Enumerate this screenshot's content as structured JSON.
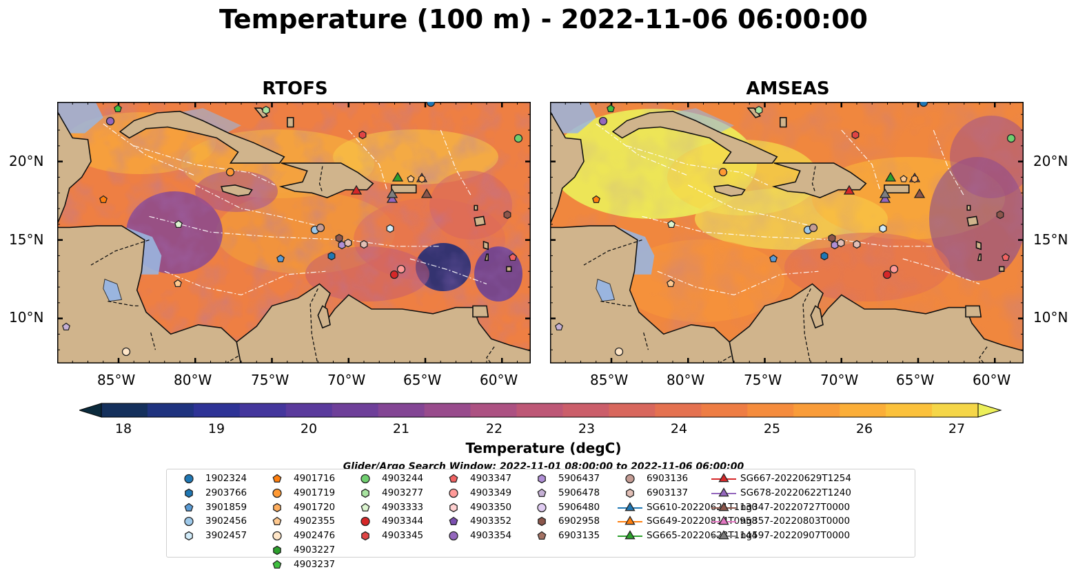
{
  "title": "Temperature (100 m) - 2022-11-06 06:00:00",
  "panels": [
    {
      "title": "RTOFS",
      "scheme": "rtofs"
    },
    {
      "title": "AMSEAS",
      "scheme": "amseas"
    }
  ],
  "axes": {
    "lon_ticks": [
      "85°W",
      "80°W",
      "75°W",
      "70°W",
      "65°W",
      "60°W"
    ],
    "lat_ticks": [
      "20°N",
      "15°N",
      "10°N"
    ]
  },
  "colorbar": {
    "label": "Temperature (degC)",
    "ticks": [
      "18",
      "19",
      "20",
      "21",
      "22",
      "23",
      "24",
      "25",
      "26",
      "27"
    ],
    "colors": [
      "#0b2a3c",
      "#14305c",
      "#1f337f",
      "#2e3396",
      "#44369c",
      "#5a3a9c",
      "#6e3f99",
      "#834594",
      "#984b8c",
      "#ac5182",
      "#bd5776",
      "#cb5e6a",
      "#d8675d",
      "#e47150",
      "#ee7d44",
      "#f58c3d",
      "#f99c39",
      "#fbae38",
      "#fbc13b",
      "#f5d648",
      "#ecef5a"
    ]
  },
  "search_window": "Glider/Argo Search Window: 2022-11-01 08:00:00 to 2022-11-06 06:00:00",
  "legend": [
    {
      "label": "1902324",
      "color": "#1f77b4",
      "shape": "circle"
    },
    {
      "label": "2903766",
      "color": "#1f77b4",
      "shape": "hexagon"
    },
    {
      "label": "3901859",
      "color": "#5a9bd5",
      "shape": "pentagon"
    },
    {
      "label": "3902456",
      "color": "#9ec9ea",
      "shape": "circle"
    },
    {
      "label": "3902457",
      "color": "#d2ecfa",
      "shape": "hexagon"
    },
    {
      "label": "4901716",
      "color": "#ff7f0e",
      "shape": "pentagon"
    },
    {
      "label": "4901719",
      "color": "#ff9933",
      "shape": "circle"
    },
    {
      "label": "4901720",
      "color": "#ffae5e",
      "shape": "hexagon"
    },
    {
      "label": "4902355",
      "color": "#ffc98f",
      "shape": "pentagon"
    },
    {
      "label": "4902476",
      "color": "#ffe6c8",
      "shape": "circle"
    },
    {
      "label": "4903227",
      "color": "#2ca02c",
      "shape": "hexagon"
    },
    {
      "label": "4903237",
      "color": "#3fbf3f",
      "shape": "pentagon"
    },
    {
      "label": "4903244",
      "color": "#6fcf6f",
      "shape": "circle"
    },
    {
      "label": "4903277",
      "color": "#a8e4a0",
      "shape": "hexagon"
    },
    {
      "label": "4903333",
      "color": "#dcf5d0",
      "shape": "pentagon"
    },
    {
      "label": "4903344",
      "color": "#d62728",
      "shape": "circle"
    },
    {
      "label": "4903345",
      "color": "#e04444",
      "shape": "hexagon"
    },
    {
      "label": "4903347",
      "color": "#f06262",
      "shape": "pentagon"
    },
    {
      "label": "4903349",
      "color": "#ff9a98",
      "shape": "circle"
    },
    {
      "label": "4903350",
      "color": "#ffd0d0",
      "shape": "hexagon"
    },
    {
      "label": "4903352",
      "color": "#7b4fb0",
      "shape": "pentagon"
    },
    {
      "label": "4903354",
      "color": "#9467bd",
      "shape": "circle"
    },
    {
      "label": "5906437",
      "color": "#b08fd6",
      "shape": "hexagon"
    },
    {
      "label": "5906478",
      "color": "#c5b0d5",
      "shape": "pentagon"
    },
    {
      "label": "5906480",
      "color": "#e0ccf2",
      "shape": "circle"
    },
    {
      "label": "6902958",
      "color": "#8c564b",
      "shape": "hexagon"
    },
    {
      "label": "6903135",
      "color": "#a47264",
      "shape": "pentagon"
    },
    {
      "label": "6903136",
      "color": "#c49c94",
      "shape": "circle"
    },
    {
      "label": "6903137",
      "color": "#e2bfb6",
      "shape": "hexagon"
    },
    {
      "label": "SG610-20220621T1130",
      "color": "#1f77b4",
      "shape": "triangle"
    },
    {
      "label": "SG649-20220814T0958",
      "color": "#ff7f0e",
      "shape": "triangle"
    },
    {
      "label": "SG665-20220623T1144",
      "color": "#2ca02c",
      "shape": "triangle"
    },
    {
      "label": "SG667-20220629T1254",
      "color": "#d62728",
      "shape": "triangle"
    },
    {
      "label": "SG678-20220622T1240",
      "color": "#9467bd",
      "shape": "triangle"
    },
    {
      "label": "ng347-20220727T0000",
      "color": "#8c564b",
      "shape": "triangle"
    },
    {
      "label": "ng357-20220803T0000",
      "color": "#e377c2",
      "shape": "triangle"
    },
    {
      "label": "ng597-20220907T0000",
      "color": "#7f7f7f",
      "shape": "triangle"
    }
  ]
}
